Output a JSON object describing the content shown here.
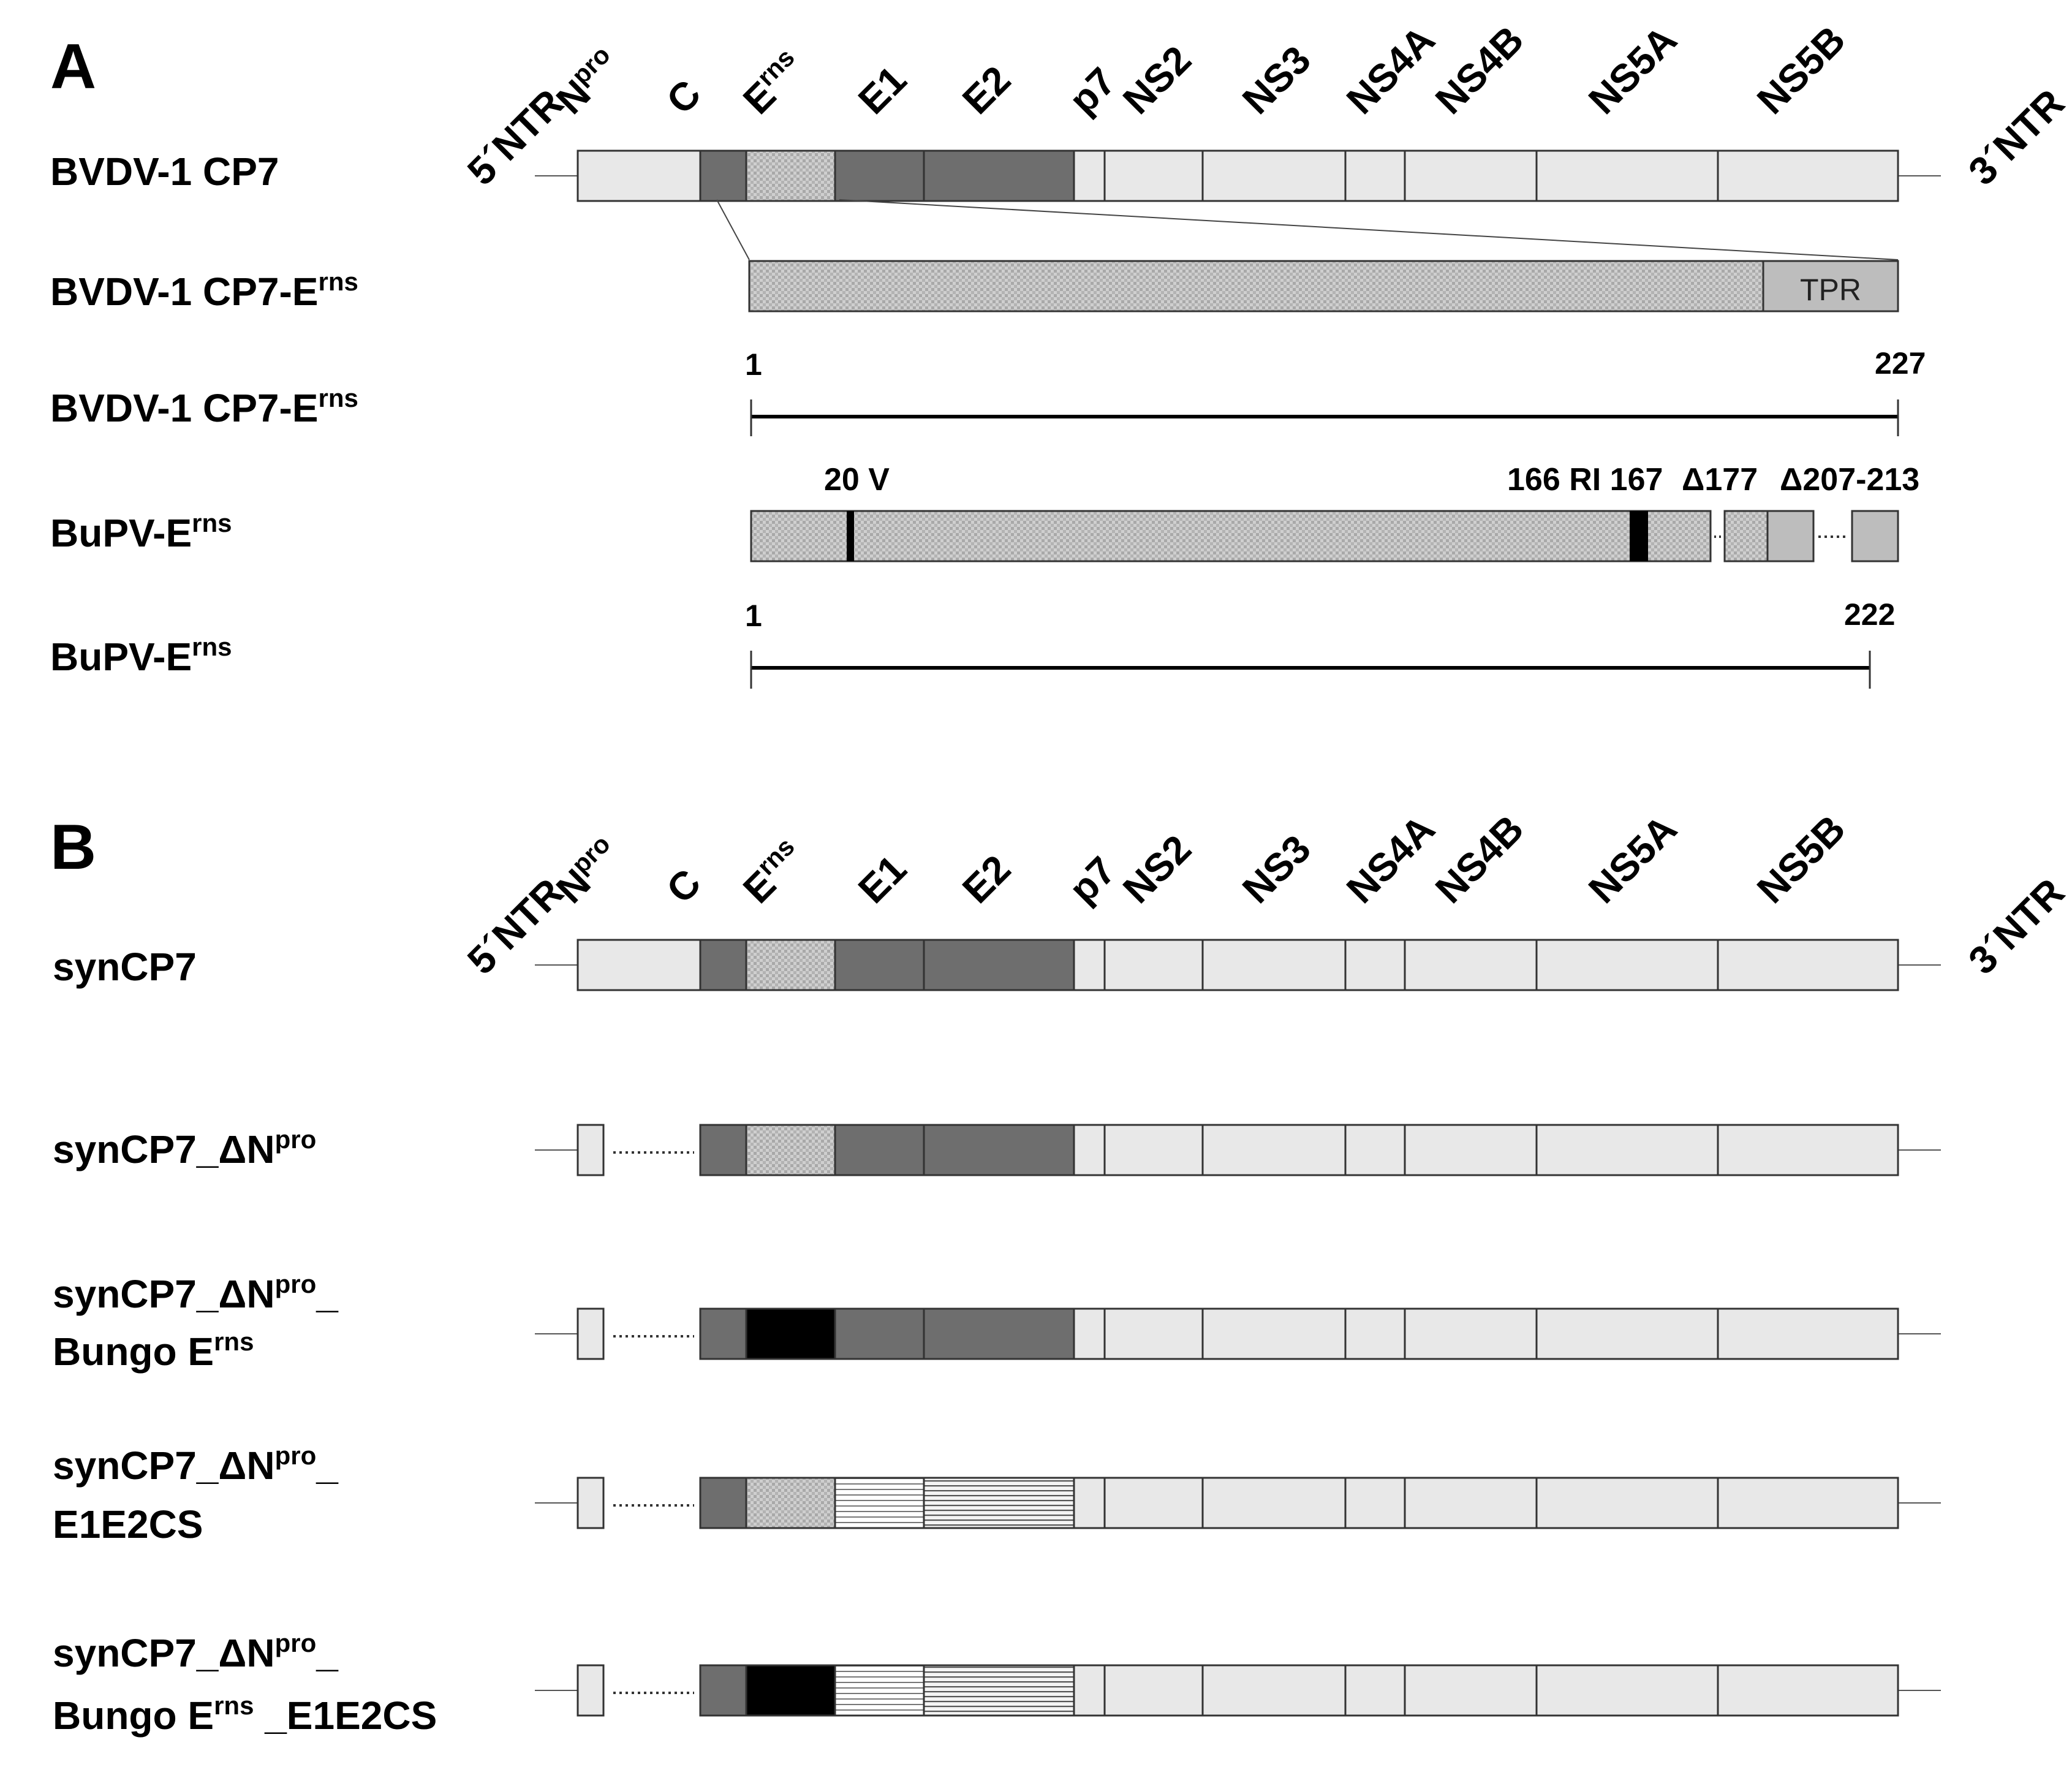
{
  "panels": [
    {
      "letter": "A",
      "genome": {
        "label": "BVDV-1 CP7",
        "ntr5": "5´NTR",
        "ntr3": "3´NTR",
        "genes": [
          {
            "name": "N",
            "sup": "pro"
          },
          {
            "name": "C",
            "sup": ""
          },
          {
            "name": "E",
            "sup": "rns"
          },
          {
            "name": "E1",
            "sup": ""
          },
          {
            "name": "E2",
            "sup": ""
          },
          {
            "name": "p7",
            "sup": ""
          },
          {
            "name": "NS2",
            "sup": ""
          },
          {
            "name": "NS3",
            "sup": ""
          },
          {
            "name": "NS4A",
            "sup": ""
          },
          {
            "name": "NS4B",
            "sup": ""
          },
          {
            "name": "NS5A",
            "sup": ""
          },
          {
            "name": "NS5B",
            "sup": ""
          }
        ]
      },
      "erns_detail": {
        "label_main": "BVDV-1 CP7-E",
        "label_sup": "rns",
        "tpr": "TPR"
      },
      "erns_scale": {
        "label_main": "BVDV-1 CP7-E",
        "label_sup": "rns",
        "start": "1",
        "end": "227"
      },
      "bupv_detail": {
        "label_main": "BuPV-E",
        "label_sup": "rns",
        "annotations": {
          "a20": "20 V",
          "a166": "166 RI 167",
          "a177": "Δ177",
          "a207": "Δ207-213"
        }
      },
      "bupv_scale": {
        "label_main": "BuPV-E",
        "label_sup": "rns",
        "start": "1",
        "end": "222"
      }
    },
    {
      "letter": "B",
      "genome": {
        "ntr5": "5´NTR",
        "ntr3": "3´NTR",
        "genes": [
          {
            "name": "N",
            "sup": "pro"
          },
          {
            "name": "C",
            "sup": ""
          },
          {
            "name": "E",
            "sup": "rns"
          },
          {
            "name": "E1",
            "sup": ""
          },
          {
            "name": "E2",
            "sup": ""
          },
          {
            "name": "p7",
            "sup": ""
          },
          {
            "name": "NS2",
            "sup": ""
          },
          {
            "name": "NS3",
            "sup": ""
          },
          {
            "name": "NS4A",
            "sup": ""
          },
          {
            "name": "NS4B",
            "sup": ""
          },
          {
            "name": "NS5A",
            "sup": ""
          },
          {
            "name": "NS5B",
            "sup": ""
          }
        ]
      },
      "constructs": [
        {
          "line1": "synCP7"
        },
        {
          "line1_main": "synCP7_ΔN",
          "line1_sup": "pro"
        },
        {
          "line1_main": "synCP7_ΔN",
          "line1_sup": "pro",
          "line1_tail": "_",
          "line2_main": "Bungo E",
          "line2_sup": "rns"
        },
        {
          "line1_main": "synCP7_ΔN",
          "line1_sup": "pro",
          "line1_tail": "_",
          "line2": "E1E2CS"
        },
        {
          "line1_main": "synCP7_ΔN",
          "line1_sup": "pro",
          "line1_tail": "_",
          "line2_main": "Bungo E",
          "line2_sup": "rns",
          "line2_tail": " _E1E2CS"
        }
      ]
    }
  ],
  "colors": {
    "light": "#e8e8e8",
    "dark": "#6e6e6e",
    "erns_dotted": "#bdbdbd",
    "tpr": "#bdbdbd",
    "bungo": "#000000",
    "outline": "#333333"
  }
}
